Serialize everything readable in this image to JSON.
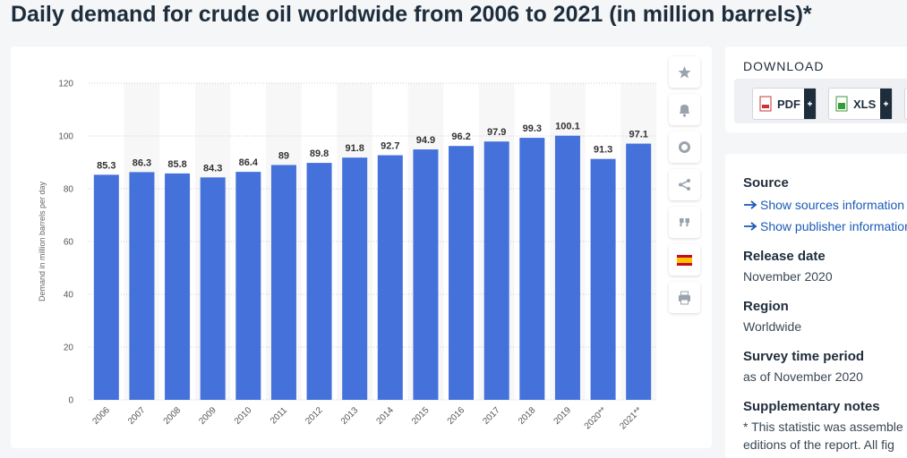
{
  "title": "Daily demand for crude oil worldwide from 2006 to 2021 (in million barrels)*",
  "chart_data": {
    "type": "bar",
    "categories": [
      "2006",
      "2007",
      "2008",
      "2009",
      "2010",
      "2011",
      "2012",
      "2013",
      "2014",
      "2015",
      "2016",
      "2017",
      "2018",
      "2019",
      "2020**",
      "2021**"
    ],
    "values": [
      85.3,
      86.3,
      85.8,
      84.3,
      86.4,
      89,
      89.8,
      91.8,
      92.7,
      94.9,
      96.2,
      97.9,
      99.3,
      100.1,
      91.3,
      97.1
    ],
    "color": "#4571db",
    "y_label": "Demand in million barrels per day",
    "ylim": [
      0,
      120
    ],
    "yticks": [
      0,
      20,
      40,
      60,
      80,
      100,
      120
    ],
    "grid": true
  },
  "download": {
    "heading": "DOWNLOAD",
    "buttons": [
      "PDF",
      "XLS"
    ]
  },
  "details": {
    "source_heading": "Source",
    "links": [
      "Show sources information",
      "Show publisher information"
    ],
    "items": [
      {
        "heading": "Release date",
        "text": "November 2020"
      },
      {
        "heading": "Region",
        "text": "Worldwide"
      },
      {
        "heading": "Survey time period",
        "text": "as of November 2020"
      }
    ],
    "notes_heading": "Supplementary notes",
    "notes": [
      "* This statistic was assemble",
      "editions of the report. All fig"
    ]
  }
}
